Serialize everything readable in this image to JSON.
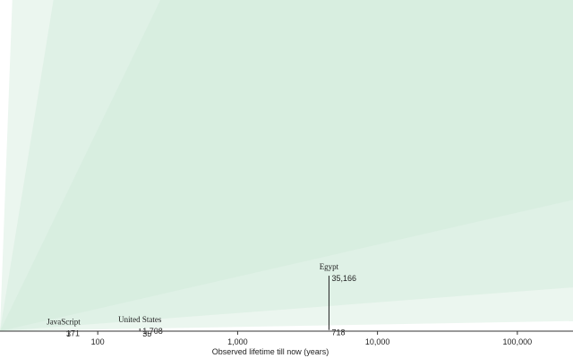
{
  "chart_data": {
    "type": "area",
    "xlabel": "Observed lifetime till now (years)",
    "x_scale": "log",
    "xlim": [
      20,
      250000
    ],
    "ylim": [
      0,
      210000
    ],
    "x_ticks": [
      {
        "value": 100,
        "label": "100"
      },
      {
        "value": 1000,
        "label": "1,000"
      },
      {
        "value": 10000,
        "label": "10,000"
      },
      {
        "value": 100000,
        "label": "100,000"
      }
    ],
    "bands": [
      {
        "lower_factor": 0.0256,
        "upper_factor": 39
      },
      {
        "lower_factor": 0.111,
        "upper_factor": 9
      },
      {
        "lower_factor": 0.333,
        "upper_factor": 3
      }
    ],
    "band_color": "#cfead9",
    "items": [
      {
        "name": "JavaScript",
        "age": 57,
        "low": 3,
        "high": 171,
        "low_label": "3",
        "high_label": "171"
      },
      {
        "name": "United States",
        "age": 200,
        "low": 35,
        "high": 1708,
        "low_label": "35",
        "high_label": "1,708"
      },
      {
        "name": "Egypt",
        "age": 4500,
        "low": 718,
        "high": 35166,
        "low_label": "718",
        "high_label": "35,166"
      }
    ],
    "grid": false,
    "legend": "none"
  }
}
